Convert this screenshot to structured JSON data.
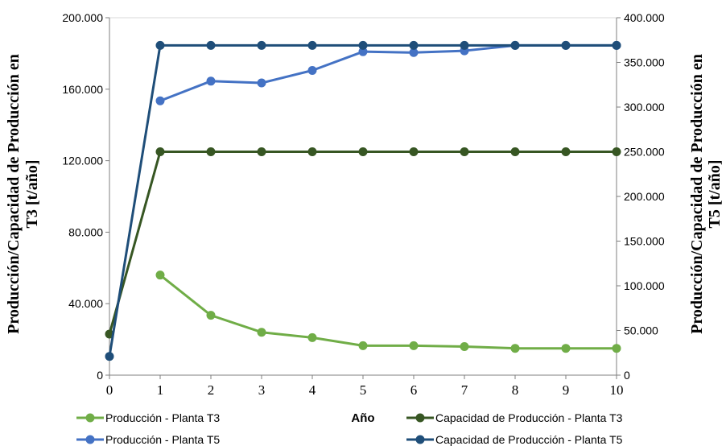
{
  "chart_data": {
    "type": "line",
    "x": [
      0,
      1,
      2,
      3,
      4,
      5,
      6,
      7,
      8,
      9,
      10
    ],
    "xlabel": "Año",
    "ylabel_left_lines": [
      "Producción/Capacidad de Producción en",
      "T3 [t/año]"
    ],
    "ylabel_right_lines": [
      "Producción/Capacidad de Producción en",
      "T5 [t/año]"
    ],
    "y_left": {
      "min": 0,
      "max": 200000,
      "ticks": [
        0,
        40000,
        80000,
        120000,
        160000,
        200000
      ],
      "tick_labels": [
        "0",
        "40.000",
        "80.000",
        "120.000",
        "160.000",
        "200.000"
      ]
    },
    "y_right": {
      "min": 0,
      "max": 400000,
      "ticks": [
        0,
        50000,
        100000,
        150000,
        200000,
        250000,
        300000,
        350000,
        400000
      ],
      "tick_labels": [
        "0",
        "50.000",
        "100.000",
        "150.000",
        "200.000",
        "250.000",
        "300.000",
        "350.000",
        "400.000"
      ]
    },
    "grid": false,
    "legend_position": "bottom",
    "series": [
      {
        "name": "Producción - Planta T3",
        "axis": "left",
        "color": "#70ad47",
        "x": [
          1,
          2,
          3,
          4,
          5,
          6,
          7,
          8,
          9,
          10
        ],
        "values": [
          56000,
          33500,
          24000,
          21000,
          16500,
          16500,
          16000,
          15000,
          15000,
          15000
        ]
      },
      {
        "name": "Capacidad de Producción - Planta T3",
        "axis": "left",
        "color": "#375623",
        "x": [
          0,
          1,
          2,
          3,
          4,
          5,
          6,
          7,
          8,
          9,
          10
        ],
        "values": [
          23000,
          125000,
          125000,
          125000,
          125000,
          125000,
          125000,
          125000,
          125000,
          125000,
          125000
        ]
      },
      {
        "name": "Producción - Planta T5",
        "axis": "right",
        "color": "#4472c4",
        "x": [
          1,
          2,
          3,
          4,
          5,
          6,
          7,
          8,
          9,
          10
        ],
        "values": [
          307000,
          329000,
          327000,
          341000,
          362000,
          361000,
          363000,
          369000,
          369000,
          369000
        ]
      },
      {
        "name": "Capacidad de Producción - Planta T5",
        "axis": "right",
        "color": "#1f4e79",
        "x": [
          0,
          1,
          2,
          3,
          4,
          5,
          6,
          7,
          8,
          9,
          10
        ],
        "values": [
          21000,
          369000,
          369000,
          369000,
          369000,
          369000,
          369000,
          369000,
          369000,
          369000,
          369000
        ]
      }
    ]
  }
}
